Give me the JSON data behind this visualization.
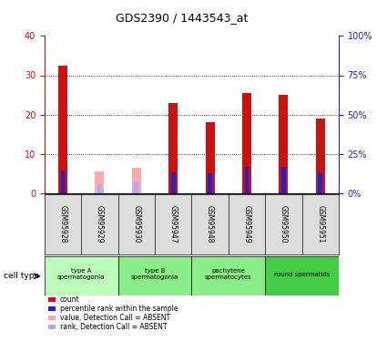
{
  "title": "GDS2390 / 1443543_at",
  "samples": [
    "GSM95928",
    "GSM95929",
    "GSM95930",
    "GSM95947",
    "GSM95948",
    "GSM95949",
    "GSM95950",
    "GSM95951"
  ],
  "count_values": [
    32.5,
    null,
    null,
    23,
    18,
    25.5,
    25,
    19
  ],
  "percentile_values": [
    14.5,
    null,
    null,
    13,
    12.5,
    16.5,
    16.5,
    12.5
  ],
  "absent_value_values": [
    null,
    5.5,
    6.5,
    null,
    null,
    null,
    null,
    null
  ],
  "absent_rank_values": [
    null,
    6.0,
    7.0,
    null,
    null,
    null,
    null,
    null
  ],
  "cell_types": [
    {
      "label": "type A\nspermatogonia",
      "start": 0,
      "end": 2,
      "color": "#bbffbb"
    },
    {
      "label": "type B\nspermatogonia",
      "start": 2,
      "end": 4,
      "color": "#88ee88"
    },
    {
      "label": "pachytene\nspermatocytes",
      "start": 4,
      "end": 6,
      "color": "#88ee88"
    },
    {
      "label": "round spermatids",
      "start": 6,
      "end": 8,
      "color": "#44cc44"
    }
  ],
  "ylim_left": [
    0,
    40
  ],
  "ylim_right": [
    0,
    100
  ],
  "yticks_left": [
    0,
    10,
    20,
    30,
    40
  ],
  "yticks_right": [
    0,
    25,
    50,
    75,
    100
  ],
  "ytick_labels_left": [
    "0",
    "10",
    "20",
    "30",
    "40"
  ],
  "ytick_labels_right": [
    "0%",
    "25%",
    "50%",
    "75%",
    "100%"
  ],
  "count_color": "#cc1111",
  "percentile_color": "#2222cc",
  "absent_value_color": "#ffaaaa",
  "absent_rank_color": "#aaaaff",
  "bar_width": 0.25,
  "percentile_bar_width": 0.12,
  "legend_items": [
    {
      "label": "count",
      "color": "#cc1111"
    },
    {
      "label": "percentile rank within the sample",
      "color": "#2222cc"
    },
    {
      "label": "value, Detection Call = ABSENT",
      "color": "#ffaaaa"
    },
    {
      "label": "rank, Detection Call = ABSENT",
      "color": "#aaaaff"
    }
  ]
}
